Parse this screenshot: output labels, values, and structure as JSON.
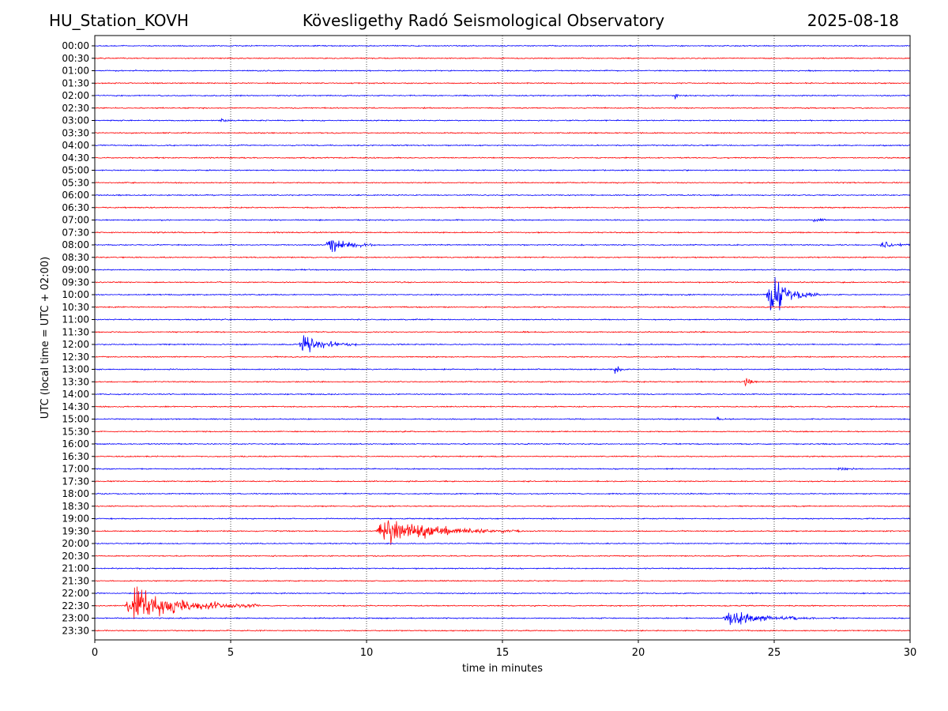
{
  "header": {
    "station": "HU_Station_KOVH",
    "observatory": "Kövesligethy Radó Seismological Observatory",
    "date": "2025-08-18"
  },
  "chart_data": {
    "type": "line",
    "title": "Kövesligethy Radó Seismological Observatory",
    "xlabel": "time in minutes",
    "ylabel": "UTC (local time = UTC + 02:00)",
    "xlim": [
      0,
      30
    ],
    "xticks": [
      0,
      5,
      10,
      15,
      20,
      25,
      30
    ],
    "grid": "vertical dotted lines at 5-minute intervals",
    "series_colors": [
      "#0000ff",
      "#ff0000"
    ],
    "rows": [
      "00:00",
      "00:30",
      "01:00",
      "01:30",
      "02:00",
      "02:30",
      "03:00",
      "03:30",
      "04:00",
      "04:30",
      "05:00",
      "05:30",
      "06:00",
      "06:30",
      "07:00",
      "07:30",
      "08:00",
      "08:30",
      "09:00",
      "09:30",
      "10:00",
      "10:30",
      "11:00",
      "11:30",
      "12:00",
      "12:30",
      "13:00",
      "13:30",
      "14:00",
      "14:30",
      "15:00",
      "15:30",
      "16:00",
      "16:30",
      "17:00",
      "17:30",
      "18:00",
      "18:30",
      "19:00",
      "19:30",
      "20:00",
      "20:30",
      "21:00",
      "21:30",
      "22:00",
      "22:30",
      "23:00",
      "23:30"
    ],
    "events": [
      {
        "row": "02:00",
        "start_min": 21.3,
        "duration_min": 0.5,
        "amplitude": 0.25
      },
      {
        "row": "03:00",
        "start_min": 4.6,
        "duration_min": 0.6,
        "amplitude": 0.2
      },
      {
        "row": "07:00",
        "start_min": 26.4,
        "duration_min": 0.8,
        "amplitude": 0.2
      },
      {
        "row": "08:00",
        "start_min": 8.5,
        "duration_min": 1.8,
        "amplitude": 1.0
      },
      {
        "row": "08:00",
        "start_min": 28.9,
        "duration_min": 1.1,
        "amplitude": 0.5
      },
      {
        "row": "10:00",
        "start_min": 24.7,
        "duration_min": 2.0,
        "amplitude": 2.1
      },
      {
        "row": "12:00",
        "start_min": 7.5,
        "duration_min": 2.2,
        "amplitude": 0.9
      },
      {
        "row": "13:00",
        "start_min": 19.1,
        "duration_min": 0.5,
        "amplitude": 0.55
      },
      {
        "row": "13:30",
        "start_min": 23.9,
        "duration_min": 0.5,
        "amplitude": 0.55
      },
      {
        "row": "15:00",
        "start_min": 22.9,
        "duration_min": 0.2,
        "amplitude": 0.45
      },
      {
        "row": "17:00",
        "start_min": 27.3,
        "duration_min": 1.0,
        "amplitude": 0.2
      },
      {
        "row": "19:30",
        "start_min": 10.3,
        "duration_min": 5.5,
        "amplitude": 1.3
      },
      {
        "row": "22:30",
        "start_min": 1.1,
        "duration_min": 5.0,
        "amplitude": 1.9
      },
      {
        "row": "23:00",
        "start_min": 23.1,
        "duration_min": 3.5,
        "amplitude": 0.9
      },
      {
        "row": "23:00",
        "start_min": 27.0,
        "duration_min": 0.8,
        "amplitude": 0.15
      }
    ]
  }
}
